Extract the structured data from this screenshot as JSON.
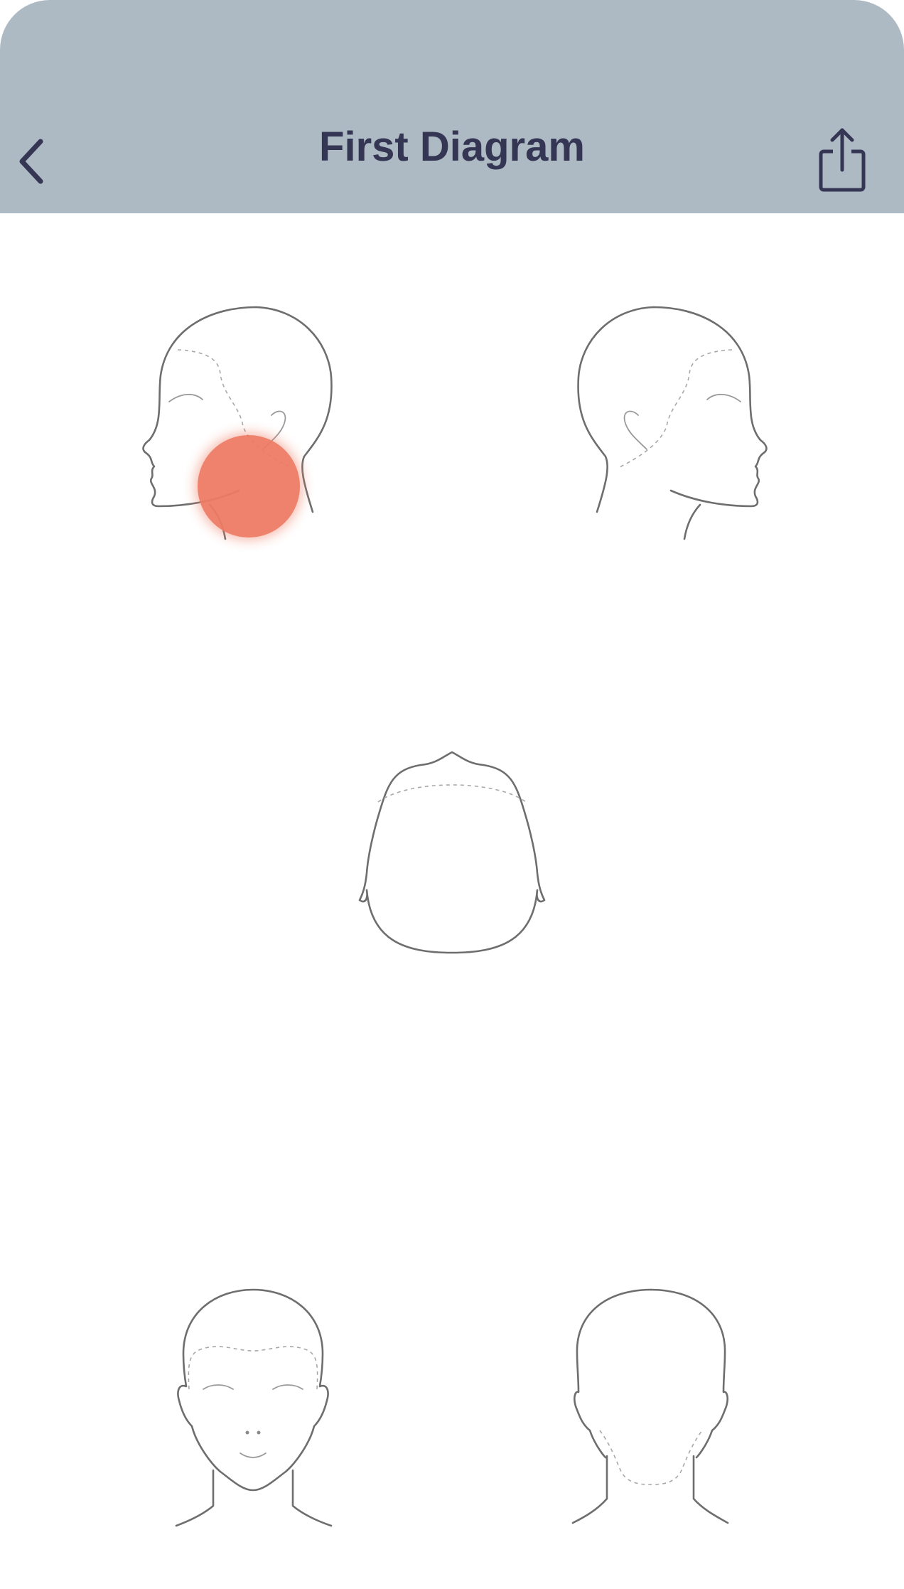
{
  "header": {
    "title": "First Diagram",
    "back_icon": "chevron-left-icon",
    "share_icon": "share-icon",
    "background_color": "#adbac3",
    "title_color": "#353554"
  },
  "diagram": {
    "views": [
      {
        "name": "left-profile"
      },
      {
        "name": "right-profile"
      },
      {
        "name": "top-view"
      },
      {
        "name": "front-view"
      },
      {
        "name": "back-view"
      }
    ],
    "markers": [
      {
        "view": "left-profile",
        "region": "jaw-neck",
        "color": "#ee7b63"
      }
    ]
  }
}
